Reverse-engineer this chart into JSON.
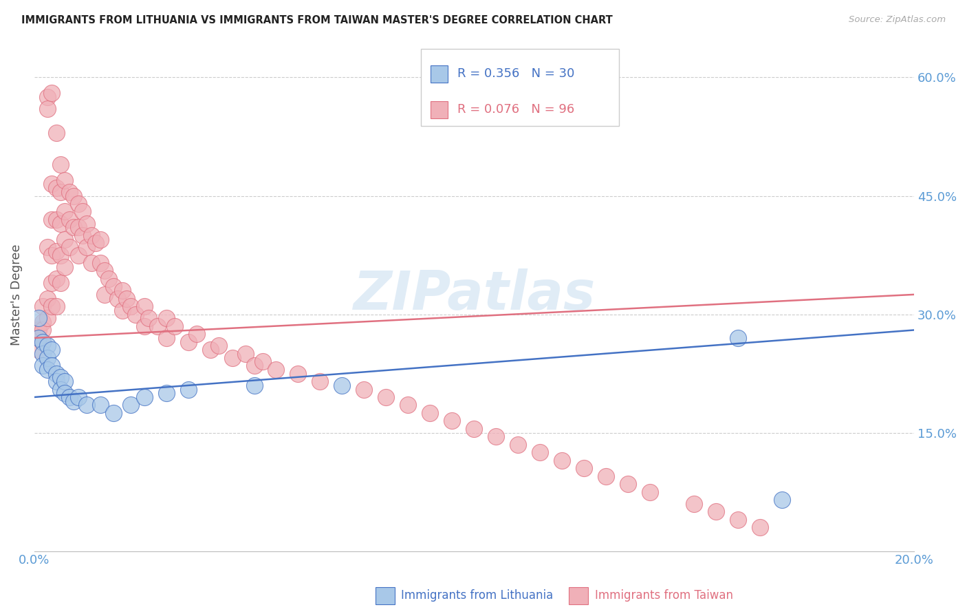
{
  "title": "IMMIGRANTS FROM LITHUANIA VS IMMIGRANTS FROM TAIWAN MASTER'S DEGREE CORRELATION CHART",
  "source": "Source: ZipAtlas.com",
  "ylabel": "Master's Degree",
  "xlim": [
    0.0,
    0.2
  ],
  "ylim": [
    0.0,
    0.65
  ],
  "yticks": [
    0.15,
    0.3,
    0.45,
    0.6
  ],
  "ytick_labels": [
    "15.0%",
    "30.0%",
    "45.0%",
    "60.0%"
  ],
  "background_color": "#ffffff",
  "watermark": "ZIPatlas",
  "lithuania_color": "#a8c8e8",
  "taiwan_color": "#f0b0b8",
  "line_lithuania_color": "#4472c4",
  "line_taiwan_color": "#e07080",
  "lith_line_x0": 0.0,
  "lith_line_y0": 0.195,
  "lith_line_x1": 0.2,
  "lith_line_y1": 0.28,
  "tw_line_x0": 0.0,
  "tw_line_y0": 0.27,
  "tw_line_x1": 0.2,
  "tw_line_y1": 0.325,
  "legend_R_lith": "R = 0.356",
  "legend_N_lith": "N = 30",
  "legend_R_taiwan": "R = 0.076",
  "legend_N_taiwan": "N = 96",
  "label_lithuania": "Immigrants from Lithuania",
  "label_taiwan": "Immigrants from Taiwan",
  "lith_x": [
    0.001,
    0.001,
    0.002,
    0.002,
    0.002,
    0.003,
    0.003,
    0.003,
    0.004,
    0.004,
    0.005,
    0.005,
    0.006,
    0.006,
    0.007,
    0.007,
    0.008,
    0.009,
    0.01,
    0.012,
    0.015,
    0.018,
    0.022,
    0.025,
    0.03,
    0.035,
    0.05,
    0.07,
    0.16,
    0.17
  ],
  "lith_y": [
    0.295,
    0.27,
    0.265,
    0.25,
    0.235,
    0.26,
    0.245,
    0.23,
    0.255,
    0.235,
    0.225,
    0.215,
    0.22,
    0.205,
    0.215,
    0.2,
    0.195,
    0.19,
    0.195,
    0.185,
    0.185,
    0.175,
    0.185,
    0.195,
    0.2,
    0.205,
    0.21,
    0.21,
    0.27,
    0.065
  ],
  "tw_x": [
    0.001,
    0.001,
    0.001,
    0.002,
    0.002,
    0.002,
    0.002,
    0.003,
    0.003,
    0.003,
    0.003,
    0.003,
    0.004,
    0.004,
    0.004,
    0.004,
    0.004,
    0.004,
    0.005,
    0.005,
    0.005,
    0.005,
    0.005,
    0.005,
    0.006,
    0.006,
    0.006,
    0.006,
    0.006,
    0.007,
    0.007,
    0.007,
    0.007,
    0.008,
    0.008,
    0.008,
    0.009,
    0.009,
    0.01,
    0.01,
    0.01,
    0.011,
    0.011,
    0.012,
    0.012,
    0.013,
    0.013,
    0.014,
    0.015,
    0.015,
    0.016,
    0.016,
    0.017,
    0.018,
    0.019,
    0.02,
    0.02,
    0.021,
    0.022,
    0.023,
    0.025,
    0.025,
    0.026,
    0.028,
    0.03,
    0.03,
    0.032,
    0.035,
    0.037,
    0.04,
    0.042,
    0.045,
    0.048,
    0.05,
    0.052,
    0.055,
    0.06,
    0.065,
    0.075,
    0.08,
    0.085,
    0.09,
    0.095,
    0.1,
    0.105,
    0.11,
    0.115,
    0.12,
    0.125,
    0.13,
    0.135,
    0.14,
    0.15,
    0.155,
    0.16,
    0.165
  ],
  "tw_y": [
    0.28,
    0.27,
    0.255,
    0.31,
    0.29,
    0.28,
    0.265,
    0.575,
    0.56,
    0.385,
    0.32,
    0.295,
    0.58,
    0.465,
    0.42,
    0.375,
    0.34,
    0.31,
    0.53,
    0.46,
    0.42,
    0.38,
    0.345,
    0.31,
    0.49,
    0.455,
    0.415,
    0.375,
    0.34,
    0.47,
    0.43,
    0.395,
    0.36,
    0.455,
    0.42,
    0.385,
    0.45,
    0.41,
    0.44,
    0.41,
    0.375,
    0.43,
    0.4,
    0.415,
    0.385,
    0.4,
    0.365,
    0.39,
    0.395,
    0.365,
    0.355,
    0.325,
    0.345,
    0.335,
    0.32,
    0.33,
    0.305,
    0.32,
    0.31,
    0.3,
    0.31,
    0.285,
    0.295,
    0.285,
    0.295,
    0.27,
    0.285,
    0.265,
    0.275,
    0.255,
    0.26,
    0.245,
    0.25,
    0.235,
    0.24,
    0.23,
    0.225,
    0.215,
    0.205,
    0.195,
    0.185,
    0.175,
    0.165,
    0.155,
    0.145,
    0.135,
    0.125,
    0.115,
    0.105,
    0.095,
    0.085,
    0.075,
    0.06,
    0.05,
    0.04,
    0.03
  ]
}
